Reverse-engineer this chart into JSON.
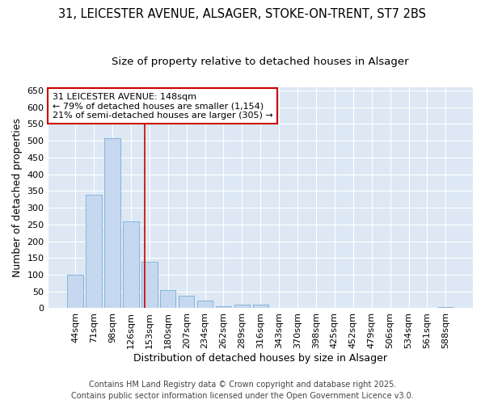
{
  "title_line1": "31, LEICESTER AVENUE, ALSAGER, STOKE-ON-TRENT, ST7 2BS",
  "title_line2": "Size of property relative to detached houses in Alsager",
  "xlabel": "Distribution of detached houses by size in Alsager",
  "ylabel": "Number of detached properties",
  "categories": [
    "44sqm",
    "71sqm",
    "98sqm",
    "126sqm",
    "153sqm",
    "180sqm",
    "207sqm",
    "234sqm",
    "262sqm",
    "289sqm",
    "316sqm",
    "343sqm",
    "370sqm",
    "398sqm",
    "425sqm",
    "452sqm",
    "479sqm",
    "506sqm",
    "534sqm",
    "561sqm",
    "588sqm"
  ],
  "values": [
    100,
    338,
    507,
    258,
    138,
    55,
    37,
    23,
    5,
    10,
    10,
    0,
    0,
    0,
    0,
    0,
    0,
    0,
    0,
    0,
    3
  ],
  "bar_color": "#c5d8f0",
  "bar_edge_color": "#7aadd4",
  "vline_color": "#cc0000",
  "vline_pos": 3.73,
  "annotation_text": "31 LEICESTER AVENUE: 148sqm\n← 79% of detached houses are smaller (1,154)\n21% of semi-detached houses are larger (305) →",
  "annotation_box_color": "#cc0000",
  "ylim": [
    0,
    660
  ],
  "yticks": [
    0,
    50,
    100,
    150,
    200,
    250,
    300,
    350,
    400,
    450,
    500,
    550,
    600,
    650
  ],
  "plot_bg_color": "#dde8f4",
  "fig_bg_color": "#ffffff",
  "grid_color": "#ffffff",
  "footer_line1": "Contains HM Land Registry data © Crown copyright and database right 2025.",
  "footer_line2": "Contains public sector information licensed under the Open Government Licence v3.0.",
  "title_fontsize": 10.5,
  "subtitle_fontsize": 9.5,
  "axis_label_fontsize": 9,
  "tick_fontsize": 8,
  "annotation_fontsize": 8,
  "footer_fontsize": 7
}
